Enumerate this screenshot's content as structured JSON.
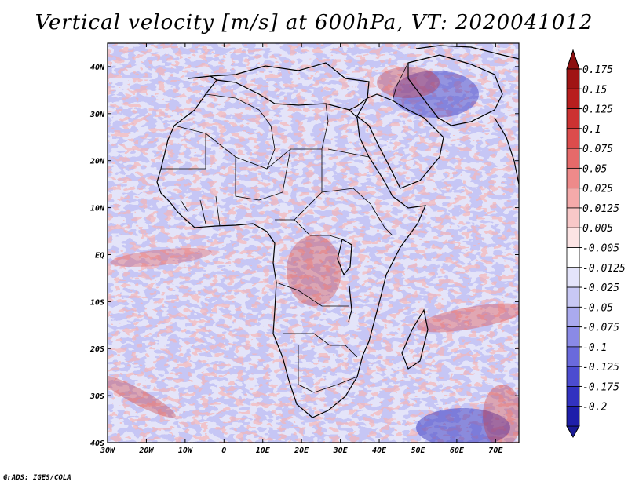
{
  "title": "Vertical velocity [m/s] at 600hPa, VT: 2020041012",
  "credit": "GrADS: IGES/COLA",
  "map": {
    "lon_range": [
      -30,
      76
    ],
    "lat_range": [
      -40,
      45
    ],
    "lat_ticks": [
      {
        "value": 40,
        "label": "40N"
      },
      {
        "value": 30,
        "label": "30N"
      },
      {
        "value": 20,
        "label": "20N"
      },
      {
        "value": 10,
        "label": "10N"
      },
      {
        "value": 0,
        "label": "EQ"
      },
      {
        "value": -10,
        "label": "10S"
      },
      {
        "value": -20,
        "label": "20S"
      },
      {
        "value": -30,
        "label": "30S"
      },
      {
        "value": -40,
        "label": "40S"
      }
    ],
    "lon_ticks": [
      {
        "value": -30,
        "label": "30W"
      },
      {
        "value": -20,
        "label": "20W"
      },
      {
        "value": -10,
        "label": "10W"
      },
      {
        "value": 0,
        "label": "0"
      },
      {
        "value": 10,
        "label": "10E"
      },
      {
        "value": 20,
        "label": "20E"
      },
      {
        "value": 30,
        "label": "30E"
      },
      {
        "value": 40,
        "label": "40E"
      },
      {
        "value": 50,
        "label": "50E"
      },
      {
        "value": 60,
        "label": "60E"
      },
      {
        "value": 70,
        "label": "70E"
      }
    ]
  },
  "colorbar": {
    "levels": [
      {
        "label": "0.175",
        "color": "#a01414"
      },
      {
        "label": "0.15",
        "color": "#b81e1e"
      },
      {
        "label": "0.125",
        "color": "#cc3232"
      },
      {
        "label": "0.1",
        "color": "#dc4c4c"
      },
      {
        "label": "0.075",
        "color": "#e66a6a"
      },
      {
        "label": "0.05",
        "color": "#ee8a8a"
      },
      {
        "label": "0.025",
        "color": "#f4aaaa"
      },
      {
        "label": "0.0125",
        "color": "#f8c8c8"
      },
      {
        "label": "0.005",
        "color": "#fce4e4"
      },
      {
        "label": "-0.005",
        "color": "#ffffff"
      },
      {
        "label": "-0.0125",
        "color": "#e4e4fa"
      },
      {
        "label": "-0.025",
        "color": "#c8c8f4"
      },
      {
        "label": "-0.05",
        "color": "#aaaaee"
      },
      {
        "label": "-0.075",
        "color": "#8a8ae6"
      },
      {
        "label": "-0.1",
        "color": "#6a6adc"
      },
      {
        "label": "-0.125",
        "color": "#4c4cd0"
      },
      {
        "label": "-0.175",
        "color": "#3232c0"
      },
      {
        "label": "-0.2",
        "color": "#1e1eaa"
      }
    ],
    "top_color": "#8c1010",
    "bottom_color": "#1a1a96"
  }
}
